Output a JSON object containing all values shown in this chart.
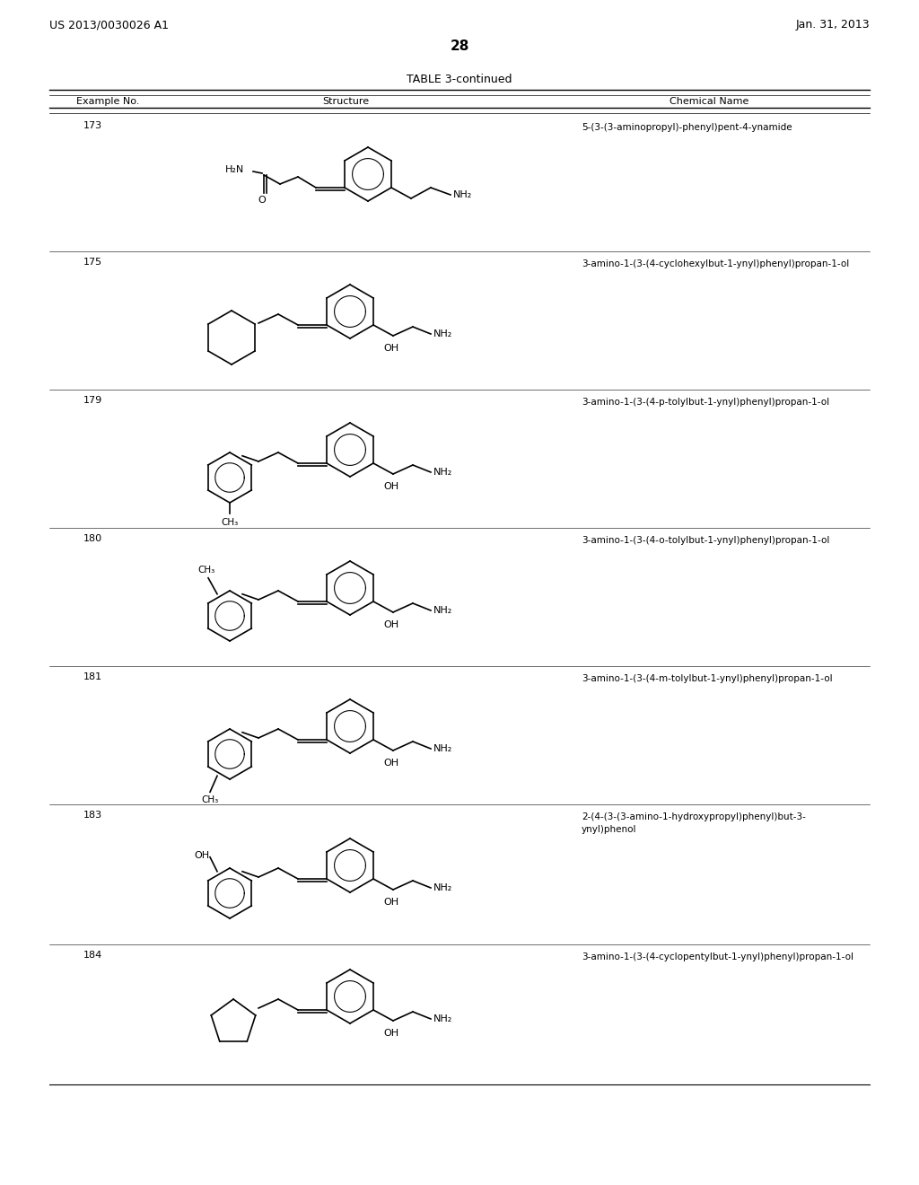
{
  "page_number": "28",
  "patent_number": "US 2013/0030026 A1",
  "patent_date": "Jan. 31, 2013",
  "table_title": "TABLE 3-continued",
  "col_headers": [
    "Example No.",
    "Structure",
    "Chemical Name"
  ],
  "background_color": "#ffffff",
  "examples": [
    "173",
    "175",
    "179",
    "180",
    "181",
    "183",
    "184"
  ],
  "chemical_names": [
    "5-(3-(3-aminopropyl)-phenyl)pent-4-ynamide",
    "3-amino-1-(3-(4-cyclohexylbut-1-ynyl)phenyl)propan-1-ol",
    "3-amino-1-(3-(4-p-tolylbut-1-ynyl)phenyl)propan-1-ol",
    "3-amino-1-(3-(4-o-tolylbut-1-ynyl)phenyl)propan-1-ol",
    "3-amino-1-(3-(4-m-tolylbut-1-ynyl)phenyl)propan-1-ol",
    "2-(4-(3-(3-amino-1-hydroxypropyl)phenyl)but-3-\nynyl)phenol",
    "3-amino-1-(3-(4-cyclopentylbut-1-ynyl)phenyl)propan-1-ol"
  ]
}
